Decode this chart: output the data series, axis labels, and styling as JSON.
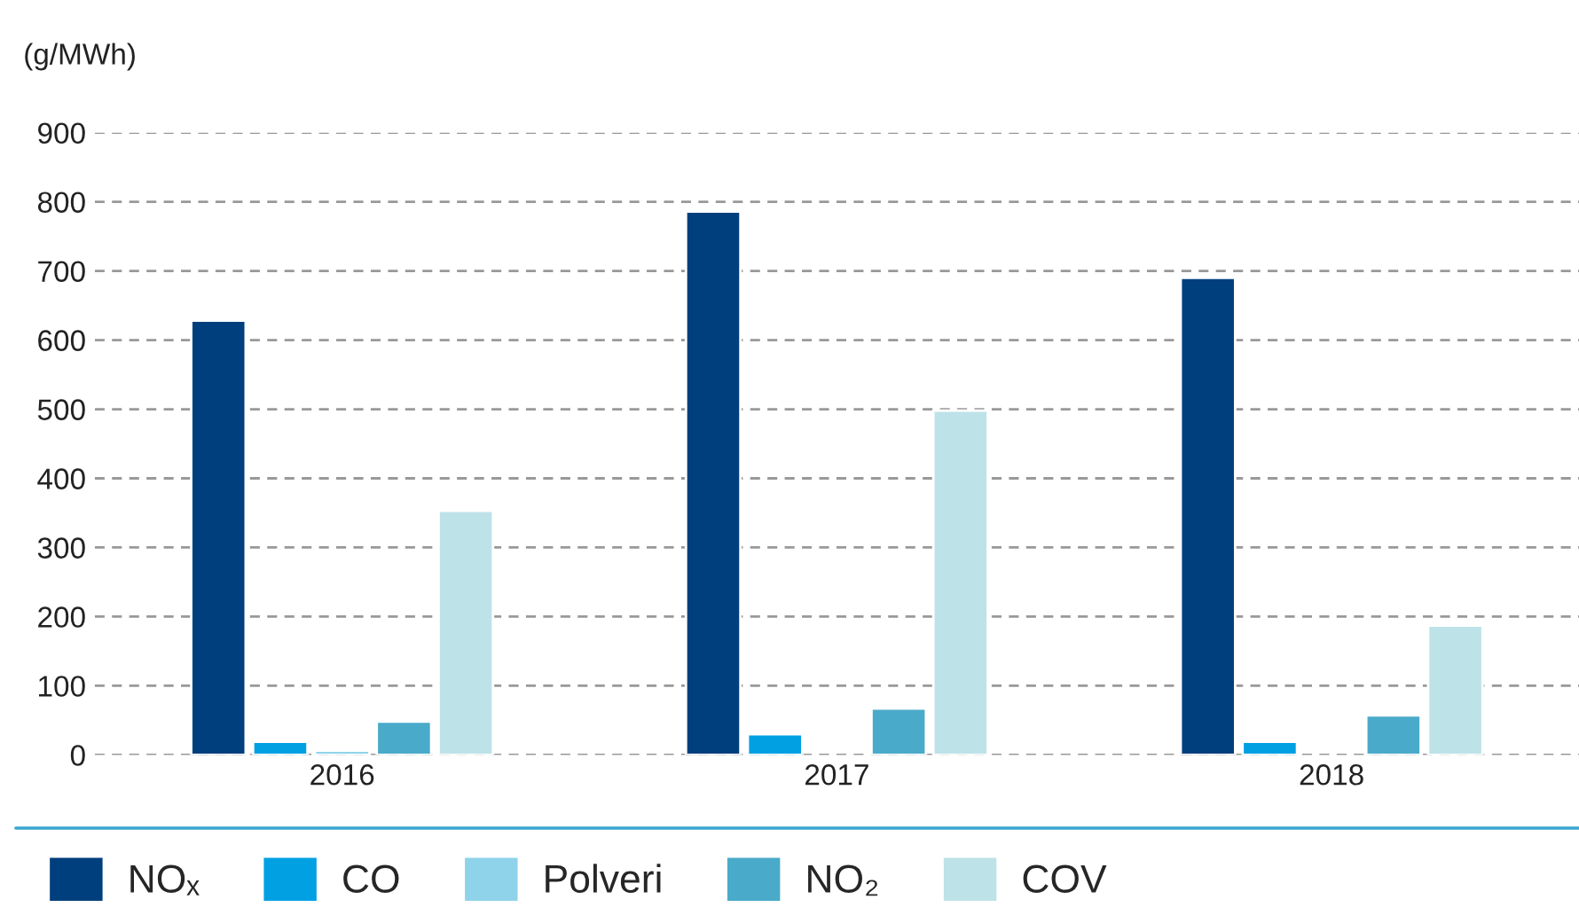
{
  "chart_data": {
    "type": "bar",
    "ylabel": "(g/MWh)",
    "categories": [
      "2016",
      "2017",
      "2018"
    ],
    "series": [
      {
        "name": "NOₓ",
        "color": "#003f7d",
        "values": [
          628,
          786,
          690
        ]
      },
      {
        "name": "CO",
        "color": "#00a0e3",
        "values": [
          19,
          30,
          19
        ]
      },
      {
        "name": "Polveri",
        "color": "#8fd3ea",
        "values": [
          6,
          null,
          null
        ]
      },
      {
        "name": "NO₂",
        "color": "#4aaaca",
        "values": [
          48,
          67,
          57
        ]
      },
      {
        "name": "COV",
        "color": "#bde2e8",
        "values": [
          353,
          498,
          187
        ]
      }
    ],
    "ylim": [
      0,
      900
    ],
    "yticks": [
      0,
      100,
      200,
      300,
      400,
      500,
      600,
      700,
      800,
      900
    ],
    "grid": "y",
    "legend": "bottom"
  }
}
